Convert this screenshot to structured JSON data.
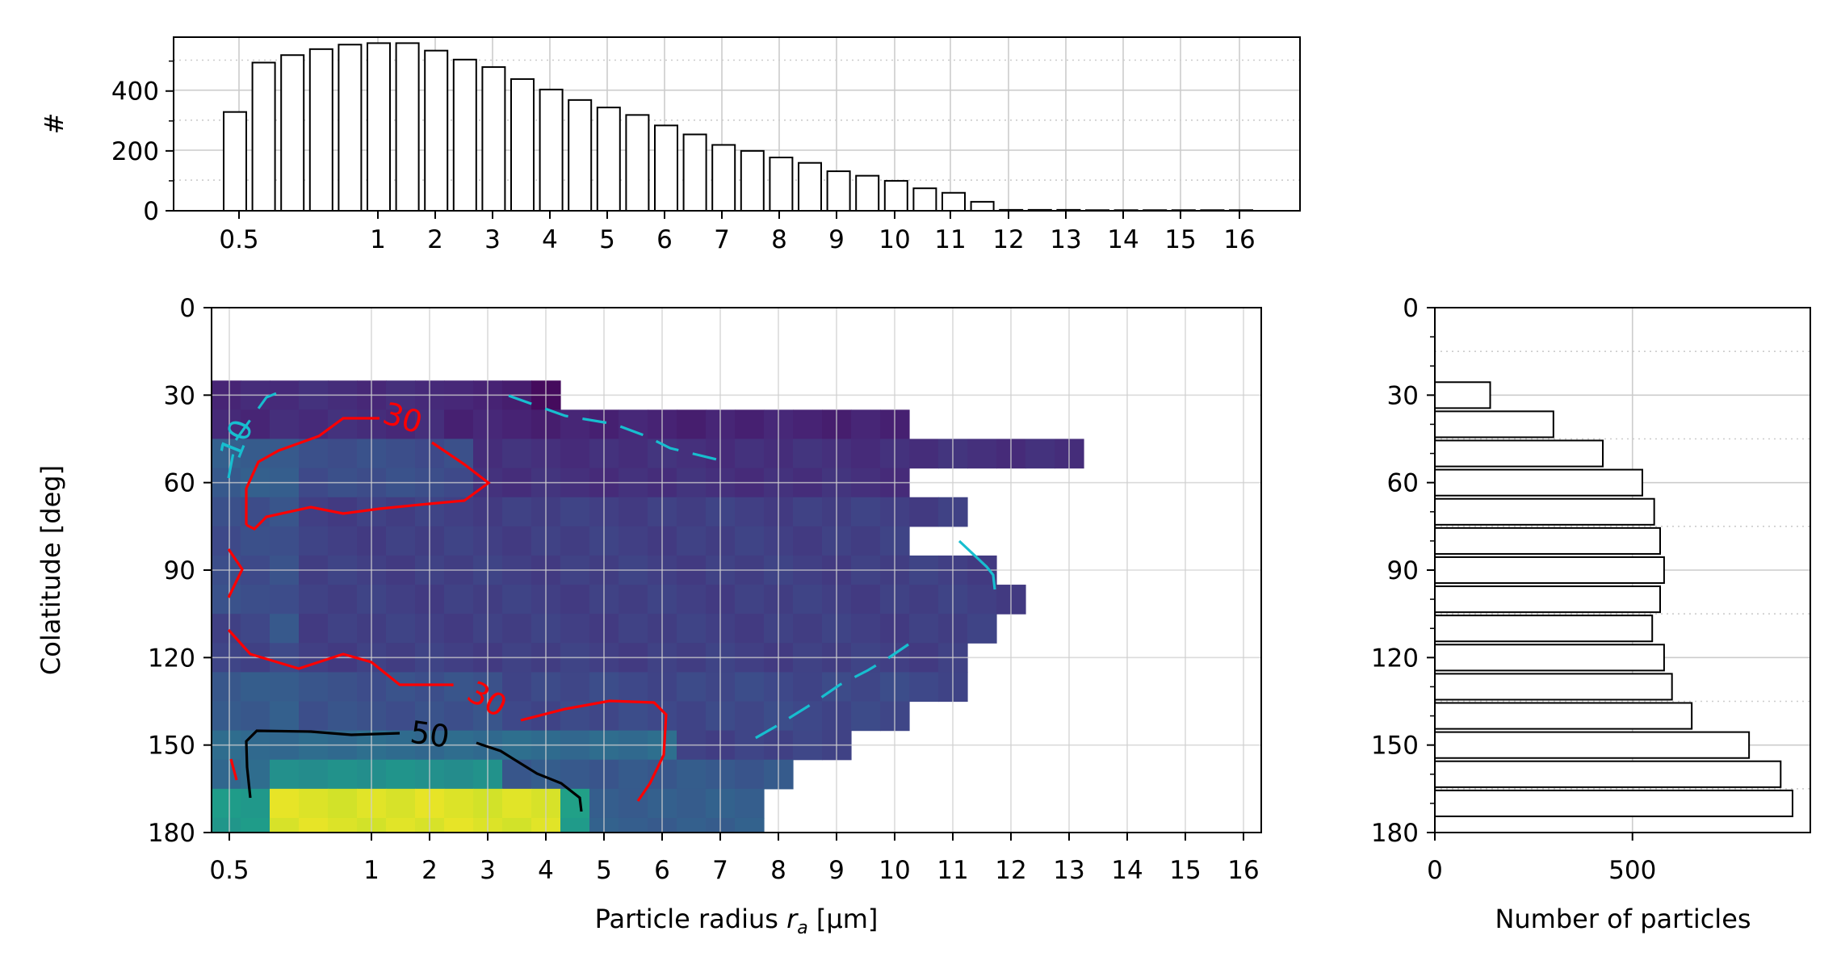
{
  "chart_data": [
    {
      "type": "bar",
      "id": "top-histogram",
      "ylabel": "#",
      "ylim": [
        0,
        580
      ],
      "yticks": [
        0,
        200,
        400
      ],
      "xtick_labels": [
        "0.5",
        "1",
        "2",
        "3",
        "4",
        "5",
        "6",
        "7",
        "8",
        "9",
        "10",
        "11",
        "12",
        "13",
        "14",
        "15",
        "16"
      ],
      "values": [
        330,
        495,
        520,
        540,
        555,
        560,
        560,
        535,
        505,
        480,
        440,
        405,
        370,
        345,
        320,
        285,
        255,
        220,
        200,
        178,
        160,
        132,
        117,
        100,
        75,
        60,
        30,
        3,
        3,
        3,
        2,
        2,
        2,
        2,
        2,
        2
      ]
    },
    {
      "type": "heatmap",
      "id": "main-heatmap",
      "xlabel": "Particle radius",
      "xlabel_symbol": "r",
      "xlabel_subscript": "a",
      "xlabel_unit": "[µm]",
      "ylabel": "Colatitude [deg]",
      "ylim": [
        0,
        180
      ],
      "yticks": [
        0,
        30,
        60,
        90,
        120,
        150,
        180
      ],
      "xtick_labels": [
        "0.5",
        "1",
        "2",
        "3",
        "4",
        "5",
        "6",
        "7",
        "8",
        "9",
        "10",
        "11",
        "12",
        "13",
        "14",
        "15",
        "16"
      ],
      "row_extent": [
        12,
        24,
        30,
        24,
        26,
        24,
        27,
        28,
        27,
        26,
        26,
        24,
        22,
        20,
        19,
        19
      ],
      "zone_values": [
        10,
        22,
        30,
        25,
        19,
        21,
        30,
        35,
        55,
        95
      ],
      "contours": [
        {
          "level": "10",
          "color": "#17becf"
        },
        {
          "level": "30",
          "color": "#ff0000"
        },
        {
          "level": "50",
          "color": "#000000"
        }
      ]
    },
    {
      "type": "bar",
      "orientation": "horizontal",
      "id": "side-histogram",
      "xlabel": "Number of particles",
      "xlim": [
        0,
        950
      ],
      "xticks": [
        0,
        500
      ],
      "yticks": [
        0,
        30,
        60,
        90,
        120,
        150,
        180
      ],
      "bin_edges": [
        25,
        35,
        45,
        55,
        65,
        75,
        85,
        95,
        105,
        115,
        125,
        135,
        145,
        155,
        165,
        175
      ],
      "values": [
        140,
        300,
        425,
        525,
        555,
        570,
        580,
        570,
        550,
        580,
        600,
        650,
        795,
        875,
        905
      ]
    }
  ]
}
